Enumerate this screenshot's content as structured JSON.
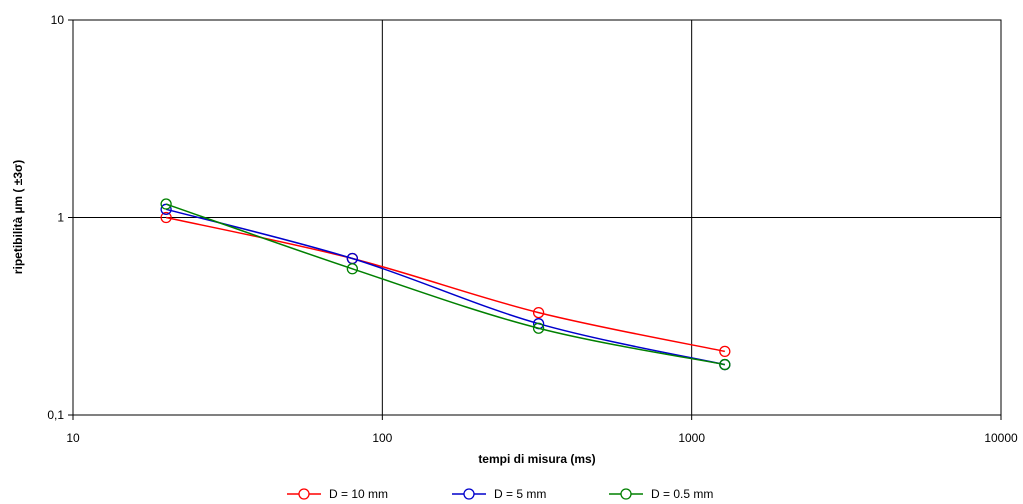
{
  "chart_data": {
    "type": "line",
    "title": "",
    "xlabel": "tempi di misura (ms)",
    "ylabel": "ripetibilità µm ( ±3σ)",
    "x_scale": "log",
    "y_scale": "log",
    "xlim": [
      10,
      10000
    ],
    "ylim": [
      0.1,
      10
    ],
    "x_tick_labels": [
      "10",
      "100",
      "1000",
      "10000"
    ],
    "y_tick_labels": [
      "0,1",
      "1",
      "10"
    ],
    "grid": true,
    "legend_position": "bottom",
    "series": [
      {
        "name": "D = 10 mm",
        "color": "#ff0000",
        "x": [
          20,
          80,
          320,
          1280
        ],
        "y": [
          1.0,
          0.62,
          0.33,
          0.21
        ]
      },
      {
        "name": "D = 5 mm",
        "color": "#0000cc",
        "x": [
          20,
          80,
          320,
          1280
        ],
        "y": [
          1.1,
          0.62,
          0.29,
          0.18
        ]
      },
      {
        "name": "D = 0.5 mm",
        "color": "#008000",
        "x": [
          20,
          80,
          320,
          1280
        ],
        "y": [
          1.17,
          0.55,
          0.275,
          0.18
        ]
      }
    ]
  }
}
